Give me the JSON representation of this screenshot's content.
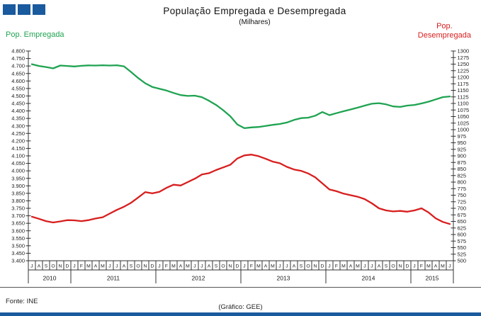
{
  "header": {
    "title": "População Empregada e Desempregada",
    "subtitle": "(Milhares)",
    "left_series_label": "Pop. Empregada",
    "right_series_label_line1": "Pop.",
    "right_series_label_line2": "Desempregada"
  },
  "footer": {
    "source": "Fonte: INE",
    "credit": "(Gráfico: GEE)"
  },
  "colors": {
    "employed_line": "#1fa351",
    "unemployed_line": "#d81e1e",
    "logo_blue": "#1a5a9e",
    "bottom_bar": "#1a5a9e",
    "axis": "#333333"
  },
  "chart_data": {
    "type": "line",
    "title": "População Empregada e Desempregada",
    "subtitle": "(Milhares)",
    "grid": false,
    "legend_position": "top-corners",
    "x_month_labels": [
      "J",
      "A",
      "S",
      "O",
      "N",
      "D",
      "J",
      "F",
      "M",
      "A",
      "M",
      "J",
      "J",
      "A",
      "S",
      "O",
      "N",
      "D",
      "J",
      "F",
      "M",
      "A",
      "M",
      "J",
      "J",
      "A",
      "S",
      "O",
      "N",
      "D",
      "J",
      "F",
      "M",
      "A",
      "M",
      "J",
      "J",
      "A",
      "S",
      "O",
      "N",
      "D",
      "J",
      "F",
      "M",
      "A",
      "M",
      "J",
      "J",
      "A",
      "S",
      "O",
      "N",
      "D",
      "J",
      "F",
      "M",
      "A",
      "M",
      "J"
    ],
    "x_year_groups": [
      {
        "label": "2010",
        "months": 6
      },
      {
        "label": "2011",
        "months": 12
      },
      {
        "label": "2012",
        "months": 12
      },
      {
        "label": "2013",
        "months": 12
      },
      {
        "label": "2014",
        "months": 12
      },
      {
        "label": "2015",
        "months": 6
      }
    ],
    "left_axis": {
      "label": "Pop. Empregada",
      "min": 3400,
      "max": 4800,
      "step": 50,
      "tick_labels": [
        "4.800",
        "4.750",
        "4.700",
        "4.650",
        "4.600",
        "4.550",
        "4.500",
        "4.450",
        "4.400",
        "4.350",
        "4.300",
        "4.250",
        "4.200",
        "4.150",
        "4.100",
        "4.050",
        "4.000",
        "3.950",
        "3.900",
        "3.850",
        "3.800",
        "3.750",
        "3.700",
        "3.650",
        "3.600",
        "3.550",
        "3.500",
        "3.450",
        "3.400"
      ]
    },
    "right_axis": {
      "label": "Pop. Desempregada",
      "min": 500,
      "max": 1300,
      "step": 25,
      "tick_labels": [
        "1300",
        "1275",
        "1250",
        "1225",
        "1200",
        "1175",
        "1150",
        "1125",
        "1100",
        "1075",
        "1050",
        "1025",
        "1000",
        "975",
        "950",
        "925",
        "900",
        "875",
        "850",
        "825",
        "800",
        "775",
        "750",
        "725",
        "700",
        "675",
        "650",
        "625",
        "600",
        "575",
        "550",
        "525",
        "500"
      ]
    },
    "series": [
      {
        "name": "Pop. Empregada",
        "axis": "left",
        "color": "#1fa351",
        "values": [
          4712,
          4700,
          4693,
          4684,
          4703,
          4700,
          4697,
          4701,
          4704,
          4703,
          4705,
          4703,
          4705,
          4698,
          4660,
          4620,
          4585,
          4560,
          4548,
          4536,
          4520,
          4506,
          4500,
          4502,
          4492,
          4468,
          4440,
          4405,
          4365,
          4310,
          4285,
          4290,
          4293,
          4300,
          4307,
          4313,
          4323,
          4340,
          4352,
          4355,
          4368,
          4393,
          4372,
          4385,
          4398,
          4410,
          4422,
          4436,
          4448,
          4452,
          4444,
          4430,
          4427,
          4436,
          4440,
          4450,
          4462,
          4477,
          4492,
          4497
        ]
      },
      {
        "name": "Pop. Desempregada",
        "axis": "right",
        "color": "#d81e1e",
        "values": [
          668,
          660,
          651,
          646,
          650,
          655,
          654,
          651,
          655,
          661,
          666,
          680,
          694,
          706,
          721,
          741,
          762,
          757,
          763,
          778,
          790,
          787,
          800,
          813,
          829,
          834,
          846,
          856,
          866,
          890,
          902,
          905,
          899,
          889,
          878,
          872,
          858,
          848,
          843,
          833,
          818,
          795,
          772,
          765,
          756,
          750,
          744,
          735,
          719,
          700,
          692,
          688,
          690,
          687,
          692,
          700,
          684,
          662,
          648,
          640
        ]
      }
    ]
  }
}
